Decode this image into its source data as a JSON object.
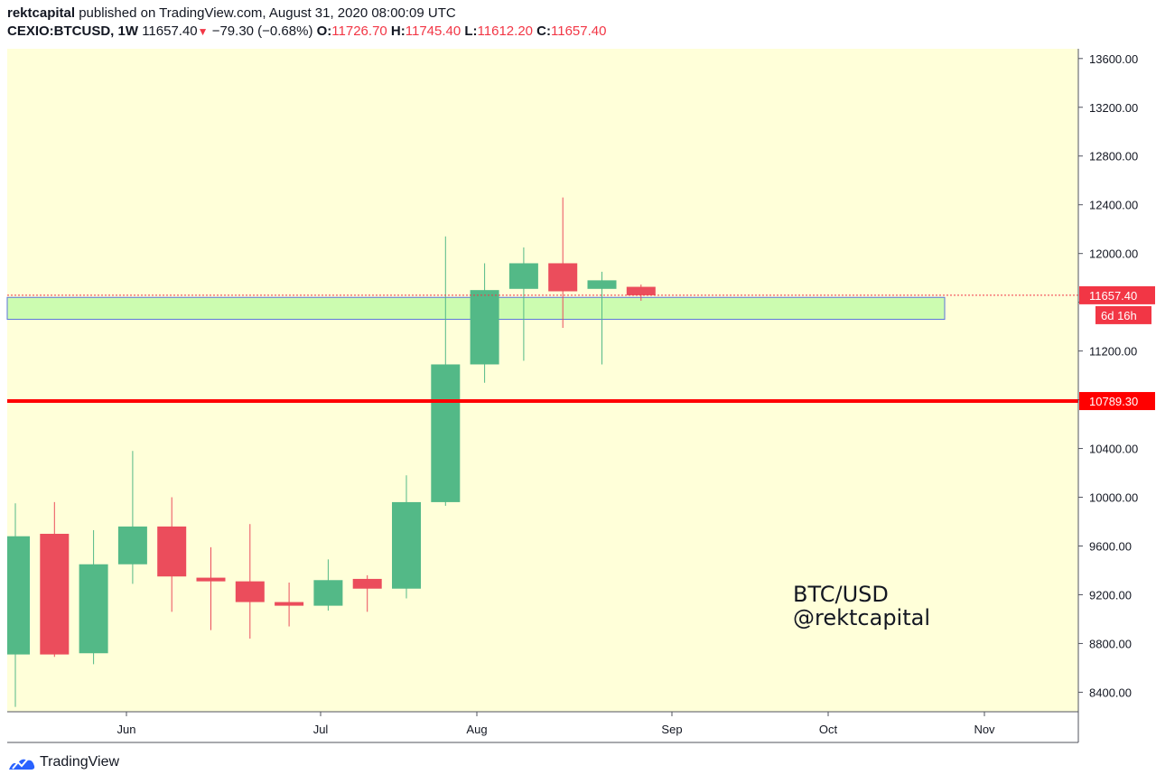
{
  "header": {
    "author": "rektcapital",
    "published_text": "published on TradingView.com, August 31, 2020 08:00:09 UTC",
    "symbol": "CEXIO:BTCUSD, 1W",
    "last_price": "11657.40",
    "change": "−79.30 (−0.68%)",
    "open_label": "O:",
    "open": "11726.70",
    "high_label": "H:",
    "high": "11745.40",
    "low_label": "L:",
    "low": "11612.20",
    "close_label": "C:",
    "close": "11657.40"
  },
  "chart_data": {
    "type": "candlestick",
    "interval": "1W",
    "symbol": "CEXIO:BTCUSD",
    "ylim": [
      8240,
      13680
    ],
    "y_ticks": [
      8400,
      8800,
      9200,
      9600,
      10000,
      10400,
      10800,
      11200,
      11600,
      12000,
      12400,
      12800,
      13200,
      13600
    ],
    "y_tick_labels": [
      "8400.00",
      "8800.00",
      "9200.00",
      "9600.00",
      "10000.00",
      "10400.00",
      "",
      "11200.00",
      "",
      "12000.00",
      "12400.00",
      "12800.00",
      "13200.00",
      "13600.00"
    ],
    "x_labels": [
      "Jun",
      "Jul",
      "Aug",
      "Sep",
      "Oct",
      "Nov"
    ],
    "candles": [
      {
        "o": 8710,
        "h": 9950,
        "l": 8280,
        "c": 9680
      },
      {
        "o": 9700,
        "h": 9960,
        "l": 8690,
        "c": 8710
      },
      {
        "o": 8720,
        "h": 9730,
        "l": 8630,
        "c": 9450
      },
      {
        "o": 9450,
        "h": 10380,
        "l": 9290,
        "c": 9760
      },
      {
        "o": 9760,
        "h": 10000,
        "l": 9060,
        "c": 9350
      },
      {
        "o": 9340,
        "h": 9590,
        "l": 8910,
        "c": 9310
      },
      {
        "o": 9310,
        "h": 9780,
        "l": 8840,
        "c": 9140
      },
      {
        "o": 9140,
        "h": 9300,
        "l": 8940,
        "c": 9110
      },
      {
        "o": 9110,
        "h": 9490,
        "l": 9070,
        "c": 9320
      },
      {
        "o": 9330,
        "h": 9360,
        "l": 9060,
        "c": 9250
      },
      {
        "o": 9250,
        "h": 10180,
        "l": 9170,
        "c": 9960
      },
      {
        "o": 9960,
        "h": 12140,
        "l": 9930,
        "c": 11090
      },
      {
        "o": 11090,
        "h": 11920,
        "l": 10940,
        "c": 11700
      },
      {
        "o": 11710,
        "h": 12050,
        "l": 11120,
        "c": 11920
      },
      {
        "o": 11920,
        "h": 12460,
        "l": 11390,
        "c": 11690
      },
      {
        "o": 11710,
        "h": 11850,
        "l": 11090,
        "c": 11780
      },
      {
        "o": 11726.7,
        "h": 11745.4,
        "l": 11612.2,
        "c": 11657.4
      }
    ],
    "last_price_label": "11657.40",
    "countdown_label": "6d 16h",
    "support_level": 10789.3,
    "support_label": "10789.30",
    "zone": {
      "low": 11460,
      "high": 11640
    },
    "annotation_lines": [
      "BTC/USD",
      "@rektcapital"
    ],
    "colors": {
      "background": "#ffffd9",
      "up": "#53b987",
      "down": "#eb4d5c",
      "support": "#ff0000",
      "zone_fill": "#ccfcb0",
      "zone_border": "#5b73d9",
      "last_price": "#f23645"
    }
  },
  "footer": {
    "brand": "TradingView"
  }
}
